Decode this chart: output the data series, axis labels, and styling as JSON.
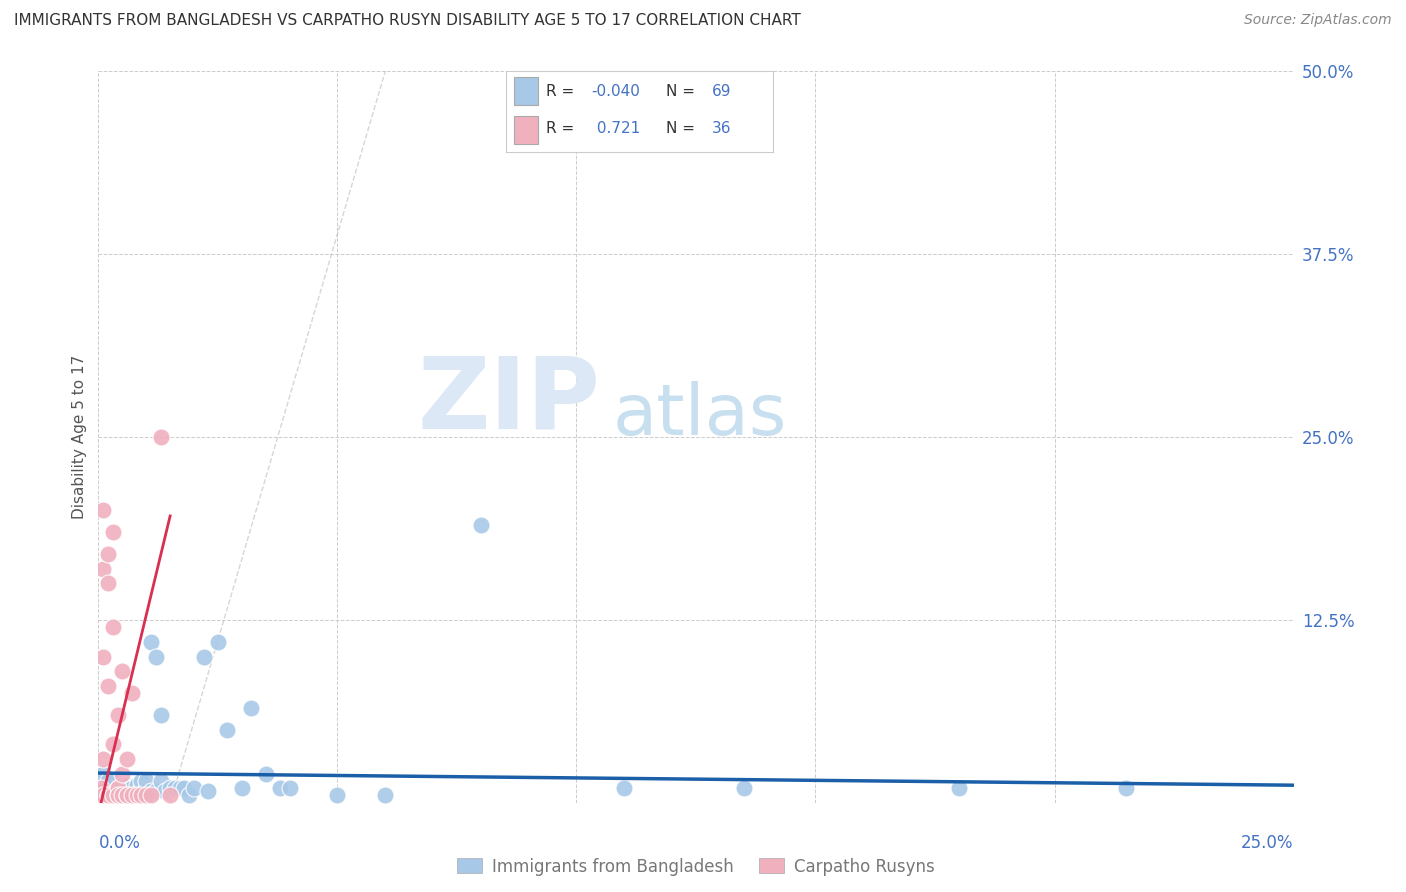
{
  "title": "IMMIGRANTS FROM BANGLADESH VS CARPATHO RUSYN DISABILITY AGE 5 TO 17 CORRELATION CHART",
  "source": "Source: ZipAtlas.com",
  "ylabel": "Disability Age 5 to 17",
  "ytick_vals": [
    0.0,
    0.125,
    0.25,
    0.375,
    0.5
  ],
  "ytick_labels": [
    "",
    "12.5%",
    "25.0%",
    "37.5%",
    "50.0%"
  ],
  "xtick_vals": [
    0.0,
    0.05,
    0.1,
    0.15,
    0.2,
    0.25
  ],
  "xlim": [
    0.0,
    0.25
  ],
  "ylim": [
    0.0,
    0.5
  ],
  "blue_scatter_color": "#a8c8e8",
  "pink_scatter_color": "#f0b0be",
  "blue_line_color": "#1a5fa8",
  "pink_line_color": "#d83050",
  "grid_color": "#cccccc",
  "grid_style": "--",
  "axis_label_color": "#4472c4",
  "title_color": "#333333",
  "source_color": "#888888",
  "watermark_ZIP_color": "#dce8f5",
  "watermark_atlas_color": "#c8dff0",
  "R_blue": -0.04,
  "R_pink": 0.721,
  "N_blue": 69,
  "N_pink": 36,
  "blue_scatter_x": [
    0.0005,
    0.001,
    0.001,
    0.001,
    0.001,
    0.002,
    0.002,
    0.002,
    0.002,
    0.003,
    0.003,
    0.003,
    0.003,
    0.004,
    0.004,
    0.004,
    0.004,
    0.005,
    0.005,
    0.005,
    0.005,
    0.005,
    0.006,
    0.006,
    0.006,
    0.006,
    0.006,
    0.007,
    0.007,
    0.007,
    0.007,
    0.008,
    0.008,
    0.008,
    0.009,
    0.009,
    0.009,
    0.01,
    0.01,
    0.01,
    0.011,
    0.011,
    0.012,
    0.012,
    0.013,
    0.013,
    0.014,
    0.015,
    0.016,
    0.017,
    0.018,
    0.019,
    0.02,
    0.022,
    0.023,
    0.025,
    0.027,
    0.03,
    0.032,
    0.035,
    0.038,
    0.04,
    0.05,
    0.06,
    0.08,
    0.11,
    0.135,
    0.18,
    0.215
  ],
  "blue_scatter_y": [
    0.01,
    0.005,
    0.01,
    0.02,
    0.01,
    0.005,
    0.008,
    0.015,
    0.008,
    0.005,
    0.01,
    0.008,
    0.015,
    0.005,
    0.008,
    0.01,
    0.005,
    0.008,
    0.01,
    0.012,
    0.005,
    0.01,
    0.005,
    0.008,
    0.01,
    0.012,
    0.008,
    0.005,
    0.01,
    0.008,
    0.01,
    0.005,
    0.008,
    0.012,
    0.005,
    0.01,
    0.015,
    0.01,
    0.008,
    0.015,
    0.11,
    0.008,
    0.1,
    0.008,
    0.015,
    0.06,
    0.008,
    0.01,
    0.01,
    0.01,
    0.01,
    0.005,
    0.01,
    0.1,
    0.008,
    0.11,
    0.05,
    0.01,
    0.065,
    0.02,
    0.01,
    0.01,
    0.005,
    0.005,
    0.19,
    0.01,
    0.01,
    0.01,
    0.01
  ],
  "pink_scatter_x": [
    0.0002,
    0.0003,
    0.0005,
    0.0005,
    0.001,
    0.001,
    0.001,
    0.001,
    0.001,
    0.002,
    0.002,
    0.002,
    0.002,
    0.002,
    0.003,
    0.003,
    0.003,
    0.003,
    0.004,
    0.004,
    0.004,
    0.004,
    0.005,
    0.005,
    0.005,
    0.006,
    0.006,
    0.006,
    0.007,
    0.007,
    0.008,
    0.009,
    0.01,
    0.011,
    0.013,
    0.015
  ],
  "pink_scatter_y": [
    0.005,
    0.008,
    0.005,
    0.01,
    0.005,
    0.03,
    0.1,
    0.16,
    0.2,
    0.005,
    0.08,
    0.15,
    0.005,
    0.17,
    0.005,
    0.04,
    0.12,
    0.185,
    0.005,
    0.01,
    0.06,
    0.005,
    0.005,
    0.02,
    0.09,
    0.005,
    0.03,
    0.005,
    0.005,
    0.075,
    0.005,
    0.005,
    0.005,
    0.005,
    0.25,
    0.005
  ],
  "legend_blue_label": "Immigrants from Bangladesh",
  "legend_pink_label": "Carpatho Rusyns"
}
